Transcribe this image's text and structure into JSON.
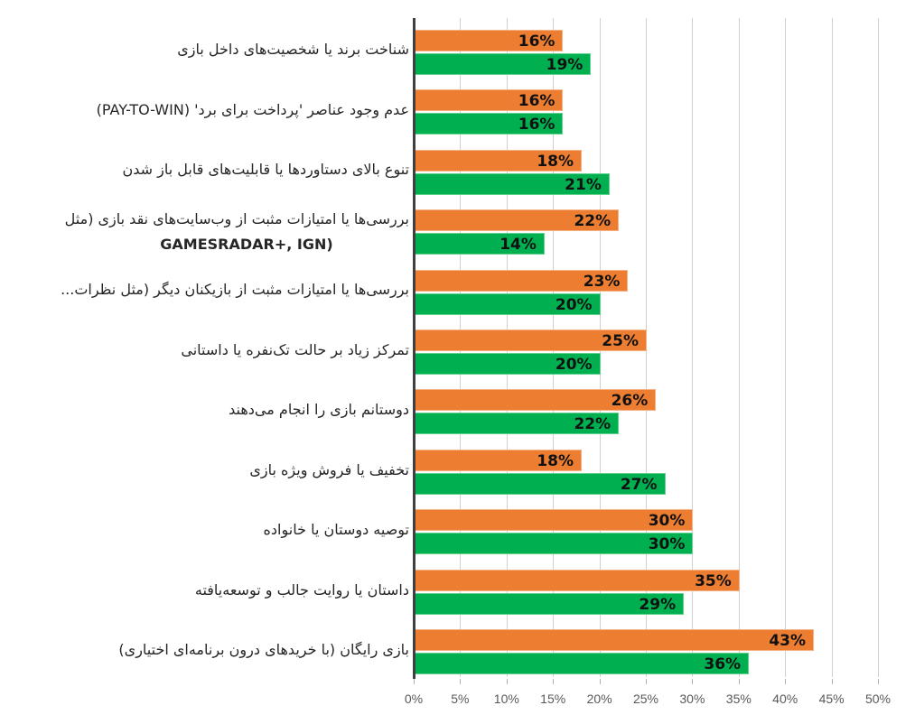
{
  "chart_data": {
    "type": "bar",
    "orientation": "horizontal",
    "title": "",
    "xlabel": "",
    "ylabel": "",
    "xlim": [
      0,
      50
    ],
    "x_ticks": [
      "0%",
      "5%",
      "10%",
      "15%",
      "20%",
      "25%",
      "30%",
      "35%",
      "40%",
      "45%",
      "50%"
    ],
    "grid": true,
    "legend": null,
    "categories": [
      "شناخت برند یا شخصیت‌های داخل بازی",
      "عدم وجود عناصر 'پرداخت برای برد' (PAY-TO-WIN)",
      "تنوع بالای دستاوردها یا قابلیت‌های قابل باز شدن",
      "بررسی‌ها یا امتیازات مثبت از وب‌سایت‌های نقد بازی (مثل GAMESRADAR+, IGN)",
      "بررسی‌ها یا امتیازات مثبت از بازیکنان دیگر (مثل نظرات...",
      "تمرکز زیاد بر حالت تک‌نفره یا داستانی",
      "دوستانم بازی را انجام می‌دهند",
      "تخفیف یا فروش ویژه بازی",
      "توصیه دوستان یا خانواده",
      "داستان یا روایت جالب و توسعه‌یافته",
      "بازی رایگان (با خریدهای درون برنامه‌ای اختیاری)"
    ],
    "series": [
      {
        "name": "series-orange",
        "color": "#ED7D31",
        "values": [
          16,
          16,
          18,
          22,
          23,
          25,
          26,
          18,
          30,
          35,
          43
        ]
      },
      {
        "name": "series-green",
        "color": "#00B050",
        "values": [
          19,
          16,
          21,
          14,
          20,
          20,
          22,
          27,
          30,
          29,
          36
        ]
      }
    ]
  },
  "labels": {
    "cat0": "شناخت برند یا شخصیت‌های داخل بازی",
    "cat1": "عدم وجود عناصر 'پرداخت برای برد' (PAY-TO-WIN)",
    "cat2": "تنوع بالای دستاوردها یا قابلیت‌های قابل باز شدن",
    "cat3a": "بررسی‌ها یا امتیازات مثبت از وب‌سایت‌های نقد بازی (مثل",
    "cat3b": "GAMESRADAR+, IGN)",
    "cat4": "بررسی‌ها یا امتیازات مثبت از بازیکنان دیگر (مثل نظرات...",
    "cat5": "تمرکز زیاد بر حالت تک‌نفره یا داستانی",
    "cat6": "دوستانم بازی را انجام می‌دهند",
    "cat7": "تخفیف یا فروش ویژه بازی",
    "cat8": "توصیه دوستان یا خانواده",
    "cat9": "داستان یا روایت جالب و توسعه‌یافته",
    "cat10": "بازی رایگان (با خریدهای درون برنامه‌ای اختیاری)"
  }
}
